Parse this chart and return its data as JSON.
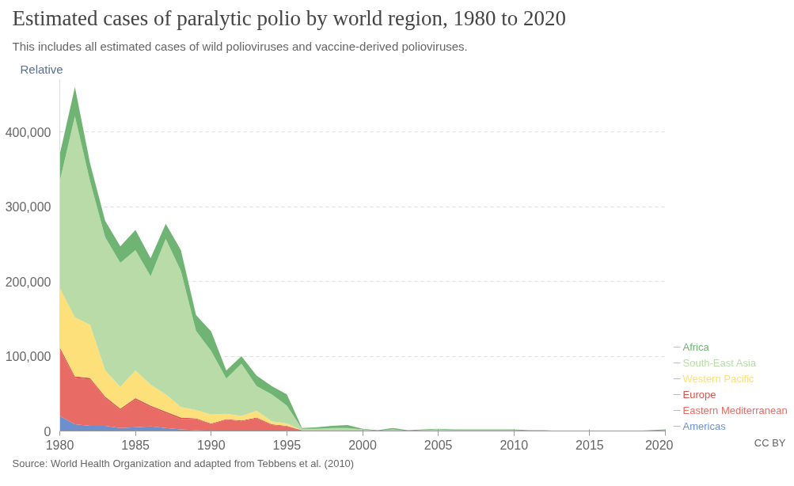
{
  "chart_data": {
    "type": "area",
    "stacked": true,
    "title": "Estimated cases of paralytic polio by world region, 1980 to 2020",
    "subtitle": "This includes all estimated cases of wild polioviruses and vaccine-derived polioviruses.",
    "annotations": [
      "Relative",
      "Source: World Health Organization and adapted from Tebbens et al. (2010)",
      "CC BY"
    ],
    "x": [
      1980,
      1981,
      1982,
      1983,
      1984,
      1985,
      1986,
      1987,
      1988,
      1989,
      1990,
      1991,
      1992,
      1993,
      1994,
      1995,
      1996,
      1997,
      1998,
      1999,
      2000,
      2001,
      2002,
      2003,
      2004,
      2005,
      2006,
      2007,
      2008,
      2009,
      2010,
      2011,
      2012,
      2013,
      2014,
      2015,
      2016,
      2017,
      2018,
      2019,
      2020
    ],
    "xlim": [
      1980,
      2020
    ],
    "xticks": [
      1980,
      1985,
      1990,
      1995,
      2000,
      2005,
      2010,
      2015,
      2020
    ],
    "ylim": [
      0,
      470000
    ],
    "yticks": [
      {
        "value": 0,
        "label": "0"
      },
      {
        "value": 100000,
        "label": "100,000"
      },
      {
        "value": 200000,
        "label": "200,000"
      },
      {
        "value": 300000,
        "label": "300,000"
      },
      {
        "value": 400000,
        "label": "400,000"
      }
    ],
    "grid": "y",
    "series": [
      {
        "name": "Americas",
        "color": "#6d8fcc",
        "values": [
          20000,
          9000,
          7000,
          7000,
          4000,
          5000,
          6000,
          4000,
          2000,
          1000,
          0,
          0,
          0,
          0,
          0,
          0,
          0,
          0,
          0,
          0,
          0,
          0,
          0,
          0,
          0,
          0,
          0,
          0,
          0,
          0,
          0,
          0,
          0,
          0,
          0,
          0,
          0,
          0,
          0,
          0,
          0
        ]
      },
      {
        "name": "Eastern Mediterranean",
        "color": "#e86b66",
        "values": [
          89000,
          62000,
          62000,
          37000,
          24000,
          37000,
          26000,
          20000,
          14000,
          15000,
          9000,
          15000,
          13000,
          17000,
          8000,
          6000,
          1000,
          1000,
          1000,
          1000,
          1000,
          0,
          0,
          0,
          0,
          1000,
          0,
          0,
          0,
          0,
          0,
          0,
          0,
          0,
          0,
          0,
          0,
          0,
          0,
          0,
          0
        ]
      },
      {
        "name": "Europe",
        "color": "#d9534a",
        "values": [
          3000,
          2000,
          2000,
          2000,
          2000,
          2000,
          2000,
          2000,
          2000,
          1000,
          1000,
          1000,
          1000,
          1000,
          1000,
          1000,
          0,
          0,
          0,
          0,
          0,
          0,
          0,
          0,
          0,
          0,
          0,
          0,
          0,
          0,
          0,
          0,
          0,
          0,
          0,
          0,
          0,
          0,
          0,
          0,
          0
        ]
      },
      {
        "name": "Western Pacific",
        "color": "#fde07a",
        "values": [
          79000,
          79000,
          71000,
          35000,
          29000,
          37000,
          28000,
          23000,
          14000,
          11000,
          12000,
          7000,
          6000,
          9000,
          4000,
          3000,
          0,
          0,
          0,
          0,
          0,
          0,
          0,
          0,
          0,
          0,
          0,
          0,
          0,
          0,
          0,
          0,
          0,
          0,
          0,
          0,
          0,
          0,
          0,
          0,
          0
        ]
      },
      {
        "name": "South-East Asia",
        "color": "#b8dba8",
        "values": [
          143000,
          269000,
          192000,
          178000,
          166000,
          161000,
          145000,
          208000,
          182000,
          106000,
          85000,
          47000,
          70000,
          33000,
          36000,
          24000,
          2000,
          2000,
          3000,
          3000,
          1000,
          0,
          2000,
          0,
          1000,
          1000,
          1000,
          1000,
          1000,
          1000,
          1000,
          0,
          0,
          0,
          0,
          0,
          0,
          0,
          0,
          0,
          1000
        ]
      },
      {
        "name": "Africa",
        "color": "#6fb473",
        "values": [
          36000,
          39000,
          24000,
          22000,
          22000,
          27000,
          24000,
          20000,
          28000,
          21000,
          26000,
          11000,
          10000,
          14000,
          11000,
          15000,
          1000,
          2000,
          3000,
          4000,
          1000,
          1000,
          2000,
          1000,
          1000,
          1000,
          1000,
          1000,
          1000,
          1000,
          1000,
          1000,
          1000,
          0,
          0,
          0,
          0,
          0,
          0,
          1000,
          1000
        ]
      }
    ]
  }
}
